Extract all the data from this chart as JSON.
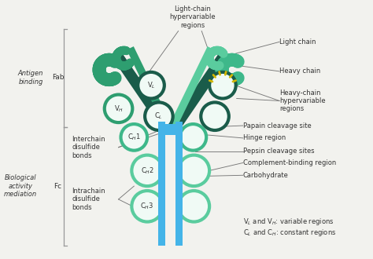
{
  "bg_color": "#f2f2ee",
  "dark_teal": "#1a5c4a",
  "mid_teal": "#2e9e70",
  "light_teal": "#3eb88a",
  "lighter_teal": "#5acc9e",
  "blue": "#44b4e8",
  "yellow": "#d4b800",
  "light_fill": "#e8f5ef",
  "white_fill": "#f0faf5",
  "text_color": "#333333",
  "line_color": "#666666",
  "labels": {
    "VL": "V$_L$",
    "VH": "V$_H$",
    "CL": "C$_L$",
    "CH1": "C$_H$1",
    "CH2": "C$_H$2",
    "CH3": "C$_H$3",
    "antigen_binding": "Antigen\nbinding",
    "fab": "Fab",
    "biological": "Biological\nactivity\nmediation",
    "fc": "Fc",
    "light_chain_hyper": "Light-chain\nhypervariable\nregions",
    "light_chain": "Light chain",
    "heavy_chain": "Heavy chain",
    "heavy_chain_hyper": "Heavy-chain\nhypervariable\nregions",
    "papain": "Papain cleavage site",
    "hinge": "Hinge region",
    "pepsin": "Pepsin cleavage sites",
    "complement": "Complement-binding region",
    "carbohydrate": "Carbohydrate",
    "interchain": "Interchain\ndisulfide\nbonds",
    "intrachain": "Intrachain\ndisulfide\nbonds",
    "variable_regions": "V$_L$ and V$_H$: variable regions",
    "constant_regions": "C$_L$ and C$_H$: constant regions"
  }
}
